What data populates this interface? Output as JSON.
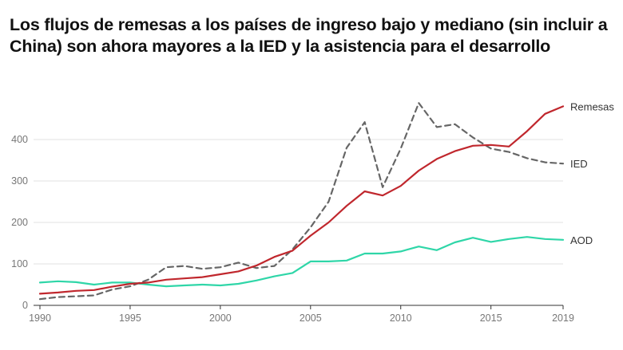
{
  "title": "Los flujos de remesas a los países de ingreso bajo y mediano (sin incluir a China) son ahora mayores a la IED y la asistencia para el desarrollo",
  "chart_data": {
    "type": "line",
    "x": [
      1990,
      1991,
      1992,
      1993,
      1994,
      1995,
      1996,
      1997,
      1998,
      1999,
      2000,
      2001,
      2002,
      2003,
      2004,
      2005,
      2006,
      2007,
      2008,
      2009,
      2010,
      2011,
      2012,
      2013,
      2014,
      2015,
      2016,
      2017,
      2018,
      2019
    ],
    "x_ticks": [
      1990,
      1995,
      2000,
      2005,
      2010,
      2015,
      2019
    ],
    "y_ticks": [
      0,
      100,
      200,
      300,
      400
    ],
    "ylim": [
      0,
      500
    ],
    "xlim": [
      1990,
      2019
    ],
    "grid": true,
    "series": [
      {
        "name": "Remesas",
        "color": "#c0272d",
        "dash": "solid",
        "values": [
          28,
          31,
          35,
          37,
          45,
          52,
          55,
          62,
          65,
          68,
          75,
          82,
          96,
          117,
          132,
          168,
          200,
          240,
          275,
          265,
          288,
          325,
          353,
          372,
          385,
          387,
          383,
          420,
          462,
          480
        ]
      },
      {
        "name": "IED",
        "color": "#666666",
        "dash": "dashed",
        "values": [
          15,
          20,
          22,
          24,
          38,
          46,
          62,
          92,
          95,
          88,
          92,
          103,
          90,
          95,
          135,
          188,
          250,
          380,
          442,
          285,
          378,
          488,
          430,
          437,
          405,
          378,
          370,
          355,
          345,
          342
        ]
      },
      {
        "name": "AOD",
        "color": "#2fd6a8",
        "dash": "solid",
        "values": [
          55,
          58,
          56,
          50,
          55,
          55,
          50,
          46,
          48,
          50,
          48,
          52,
          60,
          70,
          78,
          106,
          106,
          108,
          125,
          125,
          130,
          142,
          133,
          152,
          163,
          153,
          160,
          165,
          160,
          158
        ]
      }
    ]
  }
}
